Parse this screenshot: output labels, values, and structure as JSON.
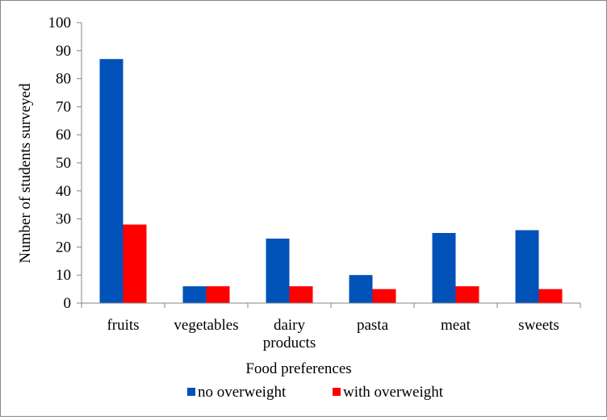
{
  "chart_data": {
    "type": "bar",
    "title": "",
    "xlabel": "Food preferences",
    "ylabel": "Number of students surveyed",
    "categories": [
      [
        "fruits"
      ],
      [
        "vegetables"
      ],
      [
        "dairy",
        "products"
      ],
      [
        "pasta"
      ],
      [
        "meat"
      ],
      [
        "sweets"
      ]
    ],
    "series": [
      {
        "name": "no overweight",
        "color": "#0052b8",
        "values": [
          87,
          6,
          23,
          10,
          25,
          26
        ]
      },
      {
        "name": "with overweight",
        "color": "#ff0000",
        "values": [
          28,
          6,
          6,
          5,
          6,
          5
        ]
      }
    ],
    "ylim": [
      0,
      100
    ],
    "yticks": [
      0,
      10,
      20,
      30,
      40,
      50,
      60,
      70,
      80,
      90,
      100
    ],
    "grid": false,
    "legend_position": "bottom"
  }
}
